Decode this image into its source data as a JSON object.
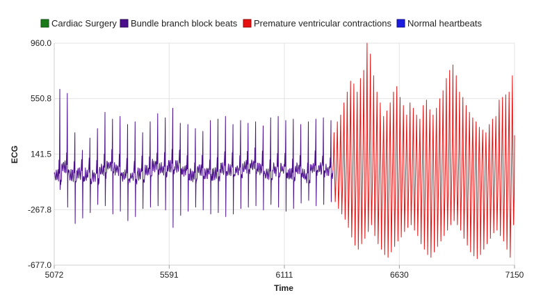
{
  "chart_data": {
    "type": "line",
    "xlabel": "Time",
    "ylabel": "ECG",
    "xlim": [
      5072,
      7150
    ],
    "ylim": [
      -677.0,
      960.0
    ],
    "x_ticks": [
      "5072",
      "5591",
      "6111",
      "6630",
      "7150"
    ],
    "y_ticks": [
      "960.0",
      "550.8",
      "141.5",
      "-267.8",
      "-677.0"
    ],
    "grid": true,
    "legend_position": "top",
    "legend": [
      {
        "name": "Cardiac Surgery",
        "color": "#1a7a1a"
      },
      {
        "name": "Bundle branch block beats",
        "color": "#4b0f8c"
      },
      {
        "name": "Premature ventricular contractions",
        "color": "#e81010"
      },
      {
        "name": "Normal heartbeats",
        "color": "#1c1ce0"
      }
    ],
    "series": [
      {
        "name": "Bundle branch block beats",
        "color": "#4b0f8c",
        "x_range": [
          5072,
          6330
        ],
        "beat_interval": 34,
        "baseline": 20,
        "peak_values": [
          620,
          590,
          300,
          170,
          260,
          330,
          450,
          400,
          420,
          360,
          380,
          300,
          380,
          440,
          410,
          480,
          370,
          360,
          330,
          310,
          390,
          400,
          420,
          360,
          390,
          370,
          380,
          350,
          410,
          420,
          390,
          400,
          360,
          380,
          400,
          410,
          390
        ],
        "trough_values": [
          -120,
          -250,
          -370,
          -330,
          -290,
          -230,
          -240,
          -300,
          -280,
          -350,
          -320,
          -260,
          -250,
          -240,
          -270,
          -400,
          -310,
          -280,
          -250,
          -270,
          -300,
          -290,
          -320,
          -300,
          -260,
          -250,
          -240,
          -270,
          -230,
          -250,
          -280,
          -260,
          -220,
          -200,
          -240,
          -230,
          -210
        ]
      },
      {
        "name": "Premature ventricular contractions",
        "color": "#e81010",
        "x_range": [
          6330,
          7150
        ],
        "beat_interval": 16,
        "peak_values": [
          300,
          380,
          430,
          520,
          600,
          680,
          660,
          600,
          700,
          760,
          960,
          880,
          720,
          600,
          520,
          420,
          460,
          520,
          600,
          640,
          560,
          500,
          430,
          520,
          480,
          430,
          400,
          500,
          540,
          470,
          430,
          480,
          550,
          610,
          700,
          760,
          800,
          720,
          600,
          560,
          500,
          450,
          410,
          380,
          340,
          320,
          300,
          360,
          400,
          420,
          540,
          560,
          580,
          600,
          720
        ],
        "trough_values": [
          -210,
          -260,
          -300,
          -340,
          -400,
          -470,
          -530,
          -560,
          -520,
          -480,
          -430,
          -380,
          -460,
          -520,
          -560,
          -600,
          -620,
          -580,
          -540,
          -500,
          -470,
          -430,
          -400,
          -380,
          -420,
          -460,
          -520,
          -560,
          -600,
          -620,
          -580,
          -540,
          -500,
          -460,
          -420,
          -380,
          -350,
          -380,
          -420,
          -480,
          -530,
          -580,
          -610,
          -630,
          -600,
          -560,
          -520,
          -480,
          -440,
          -420,
          -460,
          -500,
          -560,
          -620,
          -380
        ]
      }
    ]
  }
}
